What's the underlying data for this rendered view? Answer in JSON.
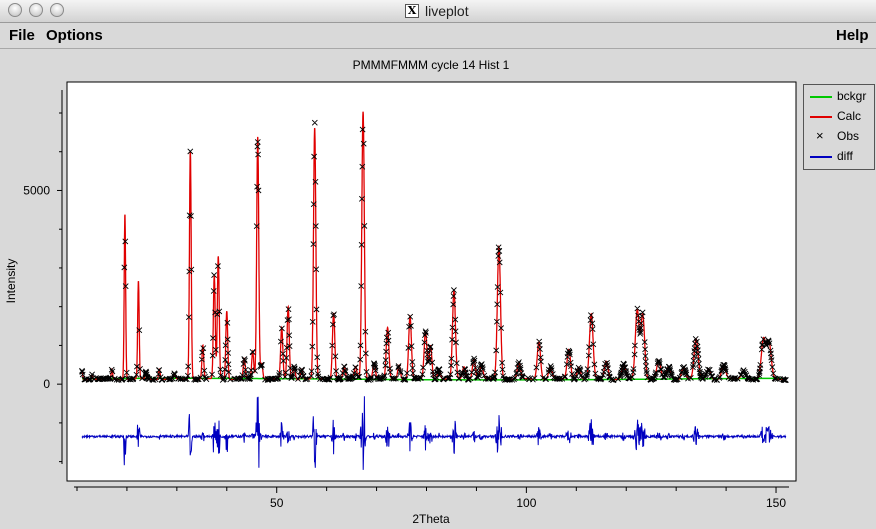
{
  "window": {
    "title": "liveplot"
  },
  "menu": {
    "file": "File",
    "options": "Options",
    "help": "Help"
  },
  "chart_data": {
    "type": "line",
    "title": "PMMMFMMM cycle 14 Hist 1",
    "xlabel": "2Theta",
    "ylabel": "Intensity",
    "xlim": [
      8,
      154
    ],
    "ylim": [
      -2500,
      7800
    ],
    "x_ticks": [
      50,
      100,
      150
    ],
    "y_ticks": [
      0,
      5000
    ],
    "legend": {
      "position": "right-top",
      "entries": [
        "bckgr",
        "Calc",
        "Obs",
        "diff"
      ]
    },
    "colors": {
      "bckgr": "#00c800",
      "Calc": "#e00000",
      "Obs": "#000000",
      "diff": "#0000c0"
    },
    "background_level": 130,
    "diff_offset": -1350,
    "peaks": [
      [
        11,
        350
      ],
      [
        13,
        250
      ],
      [
        17,
        380
      ],
      [
        19.6,
        4400
      ],
      [
        22.3,
        2650
      ],
      [
        23.8,
        300
      ],
      [
        26.5,
        400
      ],
      [
        29.5,
        250
      ],
      [
        32.7,
        6050
      ],
      [
        35.2,
        1000
      ],
      [
        37.5,
        2800
      ],
      [
        38.3,
        3300
      ],
      [
        40.0,
        1900
      ],
      [
        43.5,
        650
      ],
      [
        45.2,
        850
      ],
      [
        46.2,
        6400
      ],
      [
        47.0,
        550
      ],
      [
        51.0,
        1450
      ],
      [
        52.3,
        2000
      ],
      [
        53.5,
        450
      ],
      [
        55.0,
        400
      ],
      [
        57.6,
        6600
      ],
      [
        61.4,
        1850
      ],
      [
        63.5,
        450
      ],
      [
        65.8,
        450
      ],
      [
        67.3,
        7050
      ],
      [
        69.5,
        550
      ],
      [
        72.2,
        1450
      ],
      [
        74.5,
        500
      ],
      [
        76.7,
        1750
      ],
      [
        79.8,
        1350
      ],
      [
        80.8,
        1000
      ],
      [
        82.5,
        400
      ],
      [
        85.5,
        2400
      ],
      [
        87.5,
        450
      ],
      [
        89.5,
        650
      ],
      [
        91.0,
        500
      ],
      [
        94.5,
        3550
      ],
      [
        98.5,
        550
      ],
      [
        102.5,
        1100
      ],
      [
        104.8,
        450
      ],
      [
        108.5,
        900
      ],
      [
        110.5,
        450
      ],
      [
        113.0,
        1800
      ],
      [
        116.0,
        600
      ],
      [
        119.5,
        500
      ],
      [
        122.2,
        1900
      ],
      [
        123.3,
        1800
      ],
      [
        126.5,
        600
      ],
      [
        128.5,
        450
      ],
      [
        131.5,
        450
      ],
      [
        134.0,
        1150
      ],
      [
        136.5,
        400
      ],
      [
        139.5,
        500
      ],
      [
        143.5,
        350
      ],
      [
        147.5,
        1150
      ],
      [
        148.6,
        1050
      ]
    ]
  }
}
